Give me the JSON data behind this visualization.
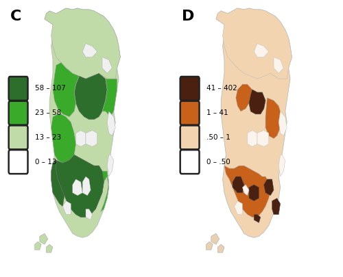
{
  "title_c": "C",
  "title_d": "D",
  "legend_c": {
    "labels": [
      "58 – 107",
      "23 – 58",
      "13 – 23",
      "0 – 13"
    ],
    "colors": [
      "#2d6e2d",
      "#3aaa2a",
      "#c0dba8",
      "#ffffff"
    ]
  },
  "legend_d": {
    "labels": [
      "41 – 402",
      "1 – 41",
      ".50 – 1",
      "0 – .50"
    ],
    "colors": [
      "#4a2010",
      "#c8621a",
      "#f2d5b0",
      "#ffffff"
    ]
  },
  "bg_color": "#ffffff",
  "border_color": "#999999"
}
